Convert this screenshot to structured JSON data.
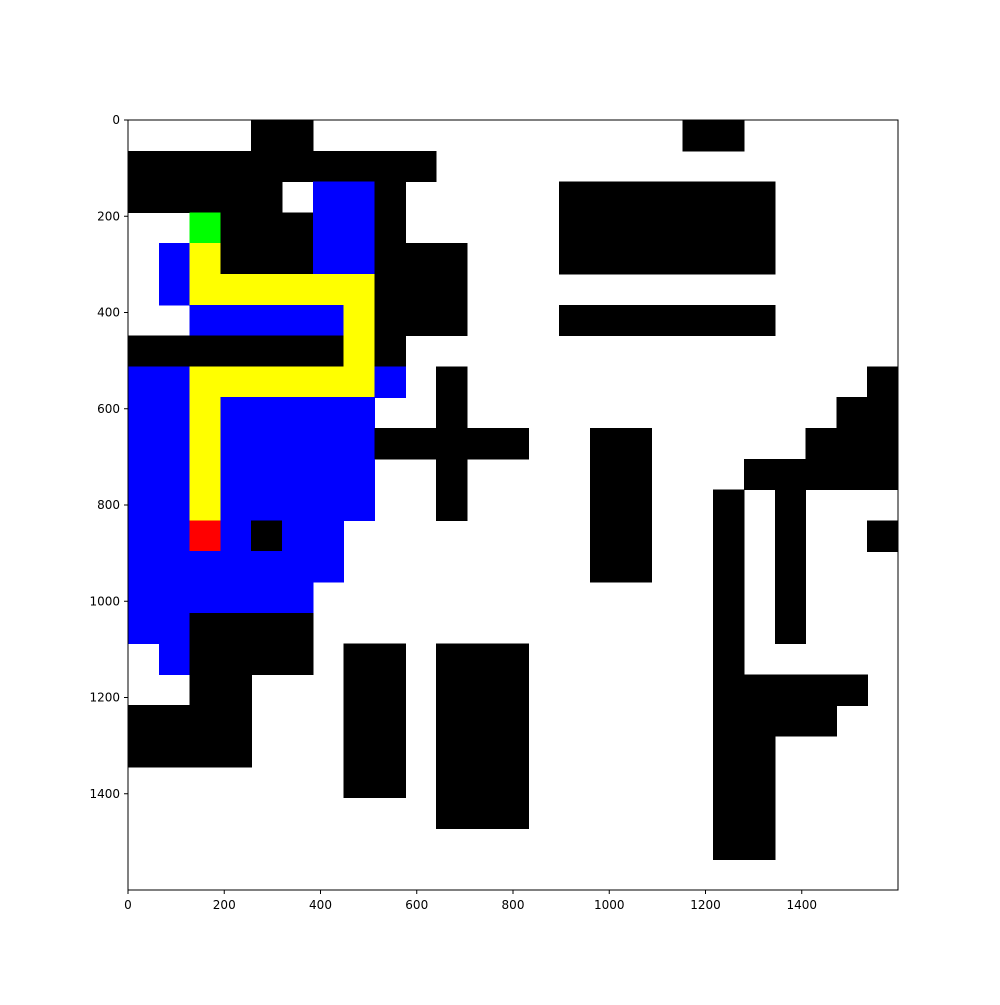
{
  "chart_data": {
    "type": "heatmap",
    "title": "",
    "xlabel": "",
    "ylabel": "",
    "xlim": [
      0,
      1600
    ],
    "ylim": [
      1600,
      0
    ],
    "cell_size": 64,
    "grid": false,
    "xticks": [
      0,
      200,
      400,
      600,
      800,
      1000,
      1200,
      1400
    ],
    "yticks": [
      0,
      200,
      400,
      600,
      800,
      1000,
      1200,
      1400
    ],
    "colors": {
      "W": "#ffffff",
      "K": "#000000",
      "B": "#0000ff",
      "Y": "#ffff00",
      "G": "#00ff00",
      "R": "#ff0000"
    },
    "cells": [
      "WWWWKKWWWWWWWWWWWWKKWWWWW",
      "KKKKKKKKKKWWWWWWWWWWWWWWW",
      "KKKKKWBBKWWWWWKKKKKKKWWWW",
      "WWGKKKBBKWWWWWKKKKKKKWWWW",
      "WBYKKKBBKKKWWWKKKKKKKWWWW",
      "WBYYYYYYKKKWWWWWWWWWWWWWW",
      "WWBBBBBYKKKWWWKKKKKKKWWWW",
      "KKKKKKKYKWWWWWWWWWWWWWWWW",
      "BBYYYYYYBWKWWWWWWWWWWWWWK",
      "BBYBBBBBWWKWWWWWWWWWWWWKK",
      "BBYBBBBBKKKKKWWKKWWWWWKKK",
      "BBYBBBBBWWKWWWWKKWWWKKKKK",
      "BBYBBBBBWWKWWWWKKWWKWKWWW",
      "BBRBKBBWWWWWWWWKKWWKWKWWK",
      "BBBBBBBWWWWWWWWKKWWKWKWWW",
      "BBBBBBWWWWWWWWWWWWWKWKWWW",
      "BBKKKKWWWWWWWWWWWWWKWKWWW",
      "WBKKKKWKKWKKKWWWWWWKWWWWW",
      "WWKKWWWKKWKKKWWWWWWKKKKKW",
      "KKKKWWWKKWKKKWWWWWWKKKKWW",
      "KKKKWWWKKWKKKWWWWWWKKWWWW",
      "WWWWWWWKKWKKKWWWWWWKKWWWW",
      "WWWWWWWWWWKKKWWWWWWKKWWWW",
      "WWWWWWWWWWWWWWWWWWWKKWWWW",
      "WWWWWWWWWWWWWWWWWWWWWWWWW"
    ]
  }
}
